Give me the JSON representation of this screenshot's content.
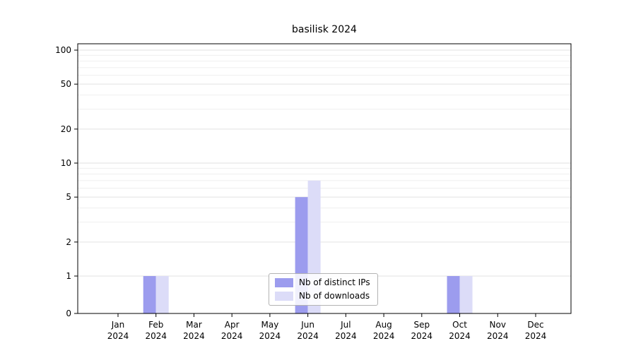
{
  "title": "basilisk 2024",
  "chart_data": {
    "type": "bar",
    "title": "basilisk 2024",
    "categories": [
      "Jan 2024",
      "Feb 2024",
      "Mar 2024",
      "Apr 2024",
      "May 2024",
      "Jun 2024",
      "Jul 2024",
      "Aug 2024",
      "Sep 2024",
      "Oct 2024",
      "Nov 2024",
      "Dec 2024"
    ],
    "series": [
      {
        "name": "Nb of distinct IPs",
        "color": "#9c9cee",
        "values": [
          0,
          1,
          0,
          0,
          0,
          5,
          0,
          0,
          0,
          1,
          0,
          0
        ]
      },
      {
        "name": "Nb of downloads",
        "color": "#dcdcf8",
        "values": [
          0,
          1,
          0,
          0,
          0,
          7,
          0,
          0,
          0,
          1,
          0,
          0
        ]
      }
    ],
    "y_ticks": [
      0,
      1,
      2,
      5,
      10,
      20,
      50,
      100
    ],
    "y_minor_ticks": [
      3,
      4,
      6,
      7,
      8,
      9,
      30,
      40,
      60,
      70,
      80,
      90
    ],
    "y_scale": "symlog",
    "ylim": [
      0,
      110
    ],
    "xlabel": "",
    "ylabel": "",
    "grid": true,
    "legend_position": "lower center",
    "colors": {
      "major_gridline": "#e2e2e2",
      "minor_gridline": "#efefef",
      "axis": "#000000",
      "background": "#ffffff"
    }
  }
}
